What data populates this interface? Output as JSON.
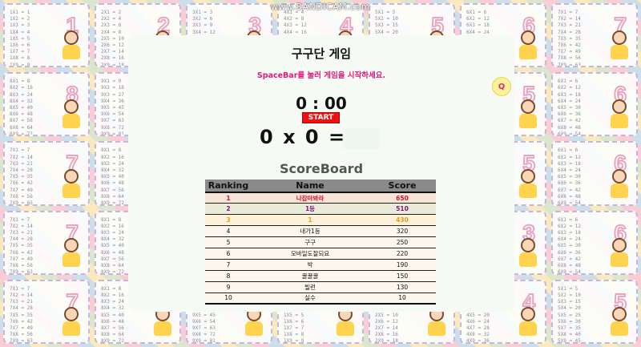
{
  "watermark": "www.BANDICAM.com",
  "game": {
    "title": "구구단 게임",
    "instruction": "SpaceBar를 눌러 게임을 시작하세요.",
    "timer": "0 : 00",
    "start_label": "START",
    "equation": {
      "left": "0",
      "operator": "x",
      "right": "0",
      "equals": "=",
      "answer_value": ""
    }
  },
  "scoreboard": {
    "title": "ScoreBoard",
    "headers": {
      "rank": "Ranking",
      "name": "Name",
      "score": "Score"
    },
    "rows": [
      {
        "rank": "1",
        "name": "나잡아봐라",
        "score": "650"
      },
      {
        "rank": "2",
        "name": "1등",
        "score": "510"
      },
      {
        "rank": "3",
        "name": "1",
        "score": "430"
      },
      {
        "rank": "4",
        "name": "내가1등",
        "score": "320"
      },
      {
        "rank": "5",
        "name": "구구",
        "score": "250"
      },
      {
        "rank": "6",
        "name": "모바일도잘되요",
        "score": "220"
      },
      {
        "rank": "7",
        "name": "박",
        "score": "190"
      },
      {
        "rank": "8",
        "name": "꿀꿀꿀",
        "score": "150"
      },
      {
        "rank": "9",
        "name": "빌런",
        "score": "130"
      },
      {
        "rank": "10",
        "name": "실수",
        "score": "10"
      }
    ]
  },
  "side_badge": {
    "icon": "magnifier-icon",
    "glyph": "Q"
  },
  "colors": {
    "rank1": "#d4142a",
    "rank2": "#7a1580",
    "rank3": "#ec9a12",
    "start": "#ee1111",
    "instruction": "#e0187c"
  }
}
